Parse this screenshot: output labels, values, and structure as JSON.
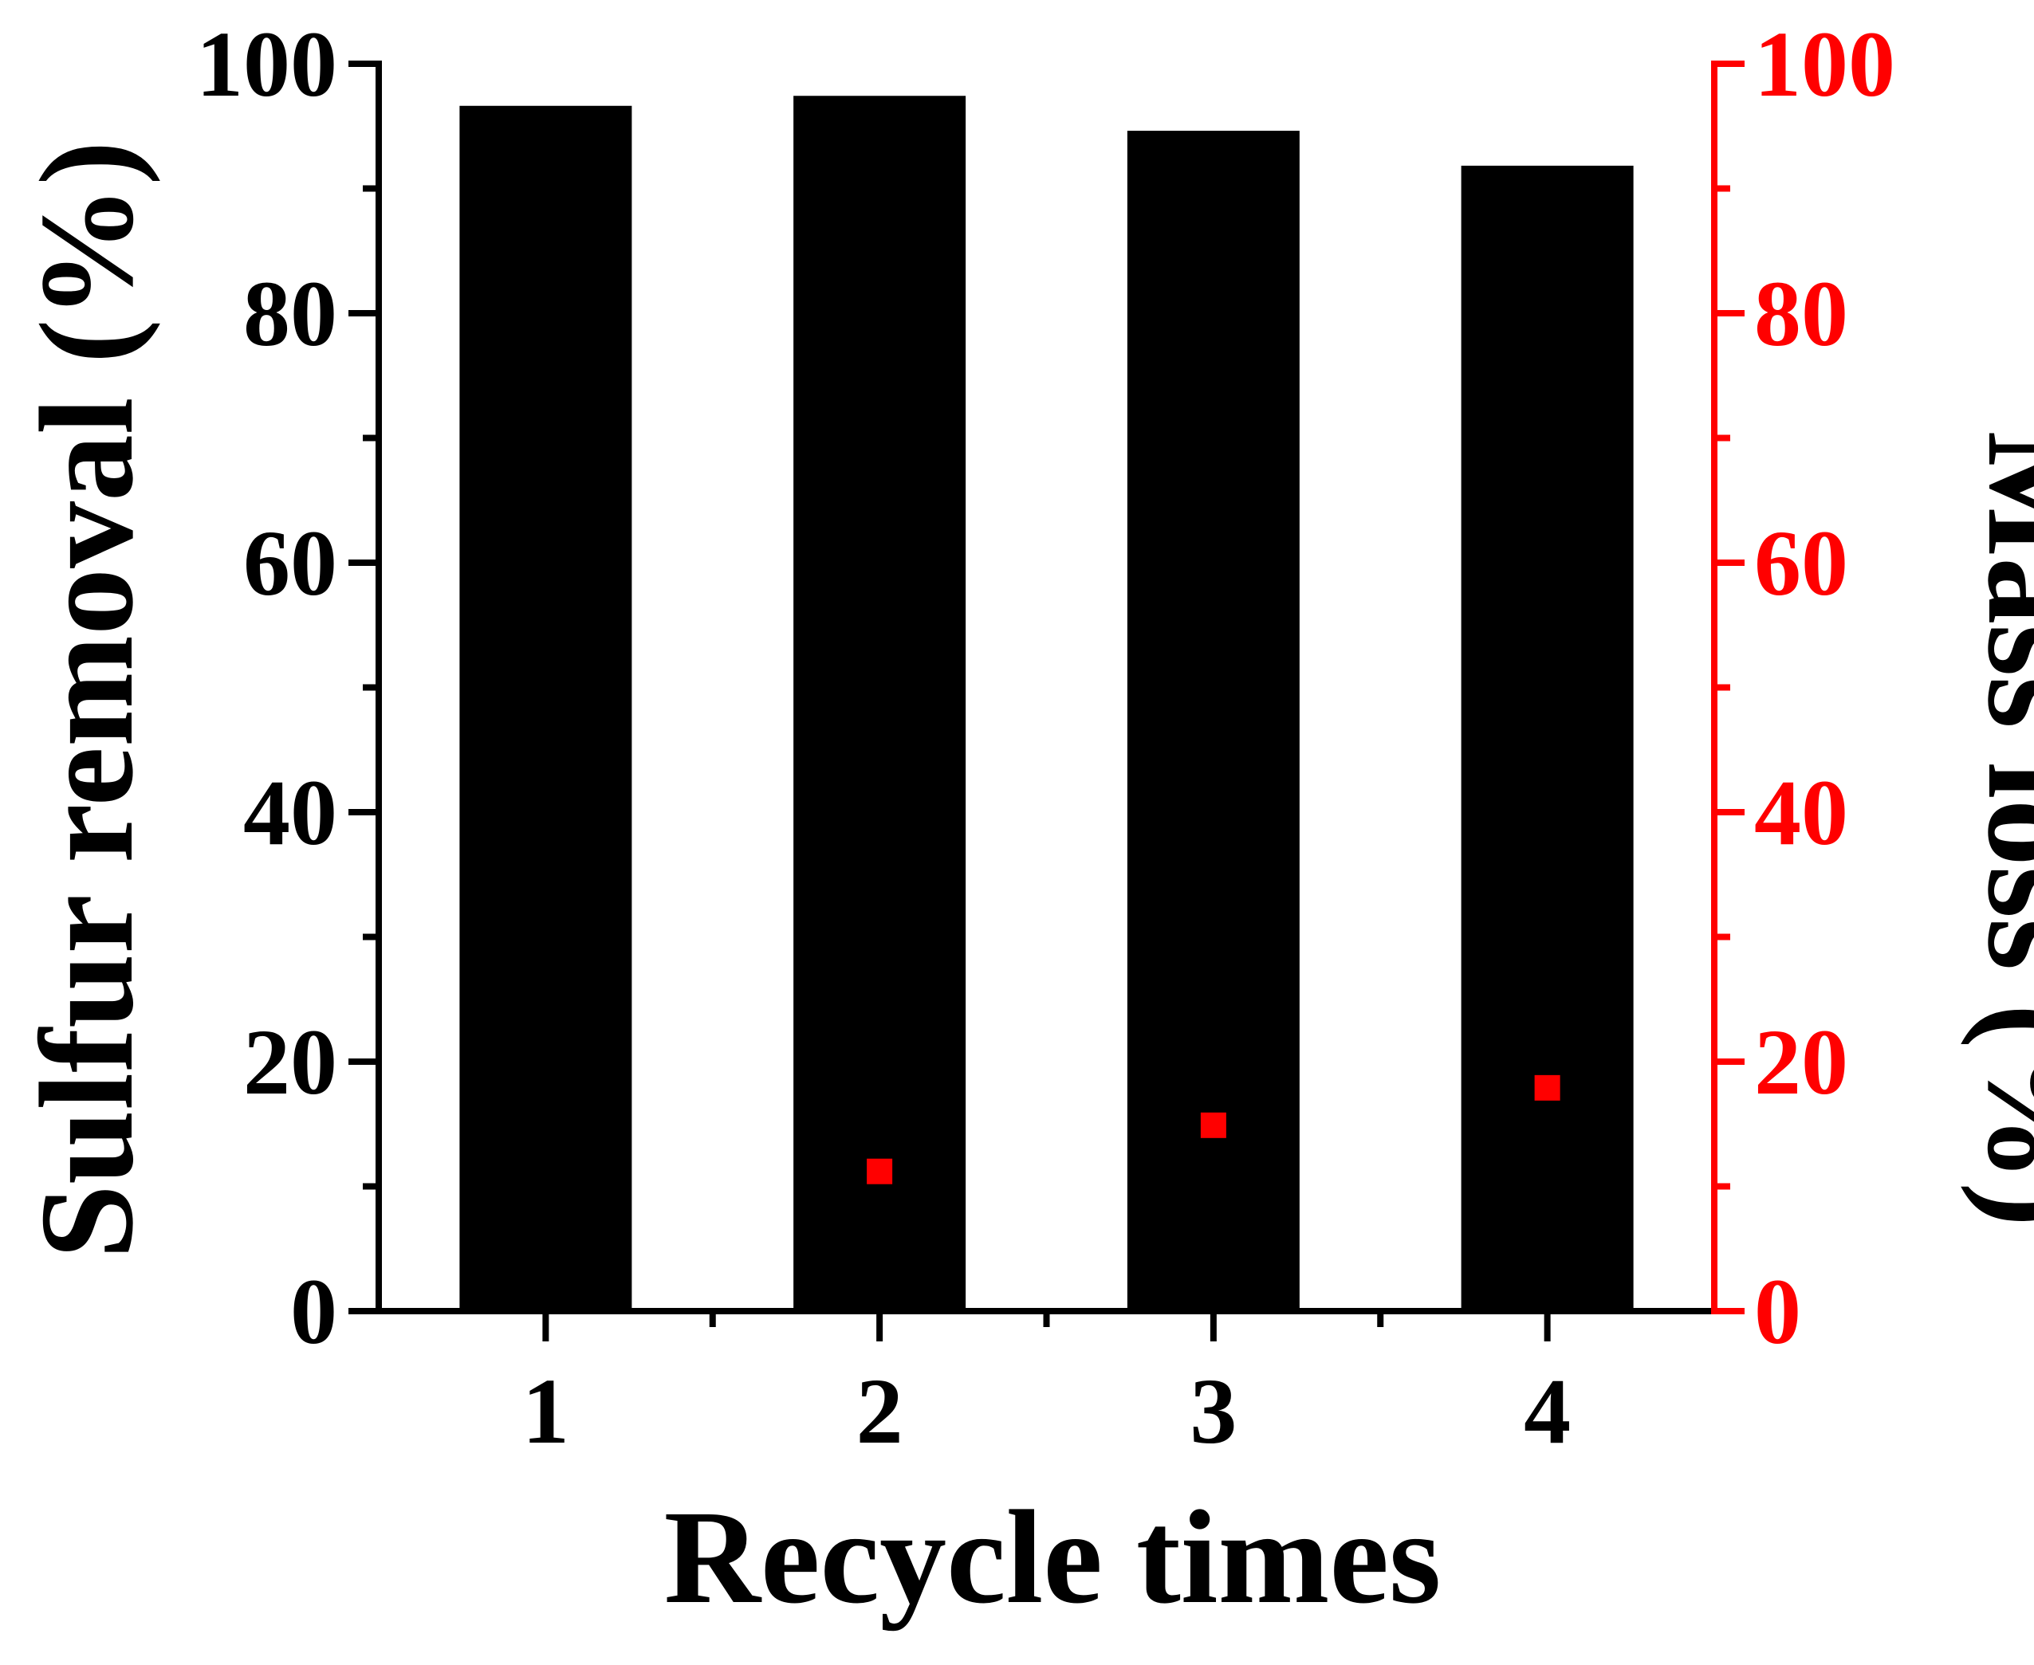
{
  "chart_data": {
    "type": "bar",
    "xlabel": "Recycle times",
    "categories": [
      "1",
      "2",
      "3",
      "4"
    ],
    "series": [
      {
        "axis": "left",
        "type": "bar",
        "values": [
          96.5,
          97.3,
          94.5,
          91.7
        ],
        "color": "#000000"
      },
      {
        "axis": "right",
        "type": "scatter",
        "values": [
          null,
          11.2,
          14.9,
          17.9
        ],
        "color": "#ff0000"
      }
    ],
    "ylabel": "Sulfur removal (%)",
    "ylim": [
      0,
      100
    ],
    "yticks": [
      "0",
      "20",
      "40",
      "60",
      "80",
      "100"
    ],
    "y2label": "Mass loss (%)",
    "y2lim": [
      0,
      100
    ],
    "y2ticks": [
      "0",
      "20",
      "40",
      "60",
      "80",
      "100"
    ],
    "y2color": "#ff0000",
    "grid": false,
    "legend": "none"
  }
}
